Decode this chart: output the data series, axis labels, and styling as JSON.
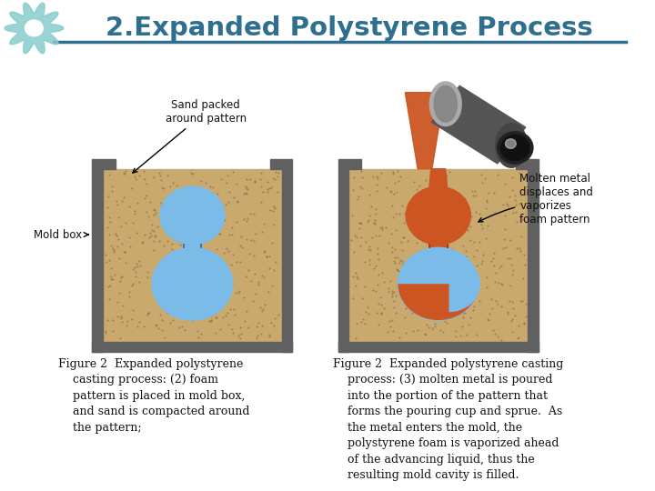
{
  "title": "2.Expanded Polystyrene Process",
  "title_color": "#2E6E8E",
  "title_fontsize": 21,
  "bg_color": "#FFFFFF",
  "separator_color": "#2E6E8E",
  "caption_left": "Figure 2  Expanded polystyrene\n    casting process: (2) foam\n    pattern is placed in mold box,\n    and sand is compacted around\n    the pattern;",
  "caption_right": "Figure 2  Expanded polystyrene casting\n    process: (3) molten metal is poured\n    into the portion of the pattern that\n    forms the pouring cup and sprue.  As\n    the metal enters the mold, the\n    polystyrene foam is vaporized ahead\n    of the advancing liquid, thus the\n    resulting mold cavity is filled.",
  "caption_fontsize": 9.0,
  "sand_color": "#C9A96E",
  "mold_box_color": "#606060",
  "mold_box_edge": "#404040",
  "foam_color": "#7ABBE8",
  "foam_edge": "#2A6AA0",
  "molten_color": "#CC5522",
  "molten_edge": "#993311",
  "label_color": "#111111",
  "label_fontsize": 8.5,
  "gear_color": "#88CCCC"
}
